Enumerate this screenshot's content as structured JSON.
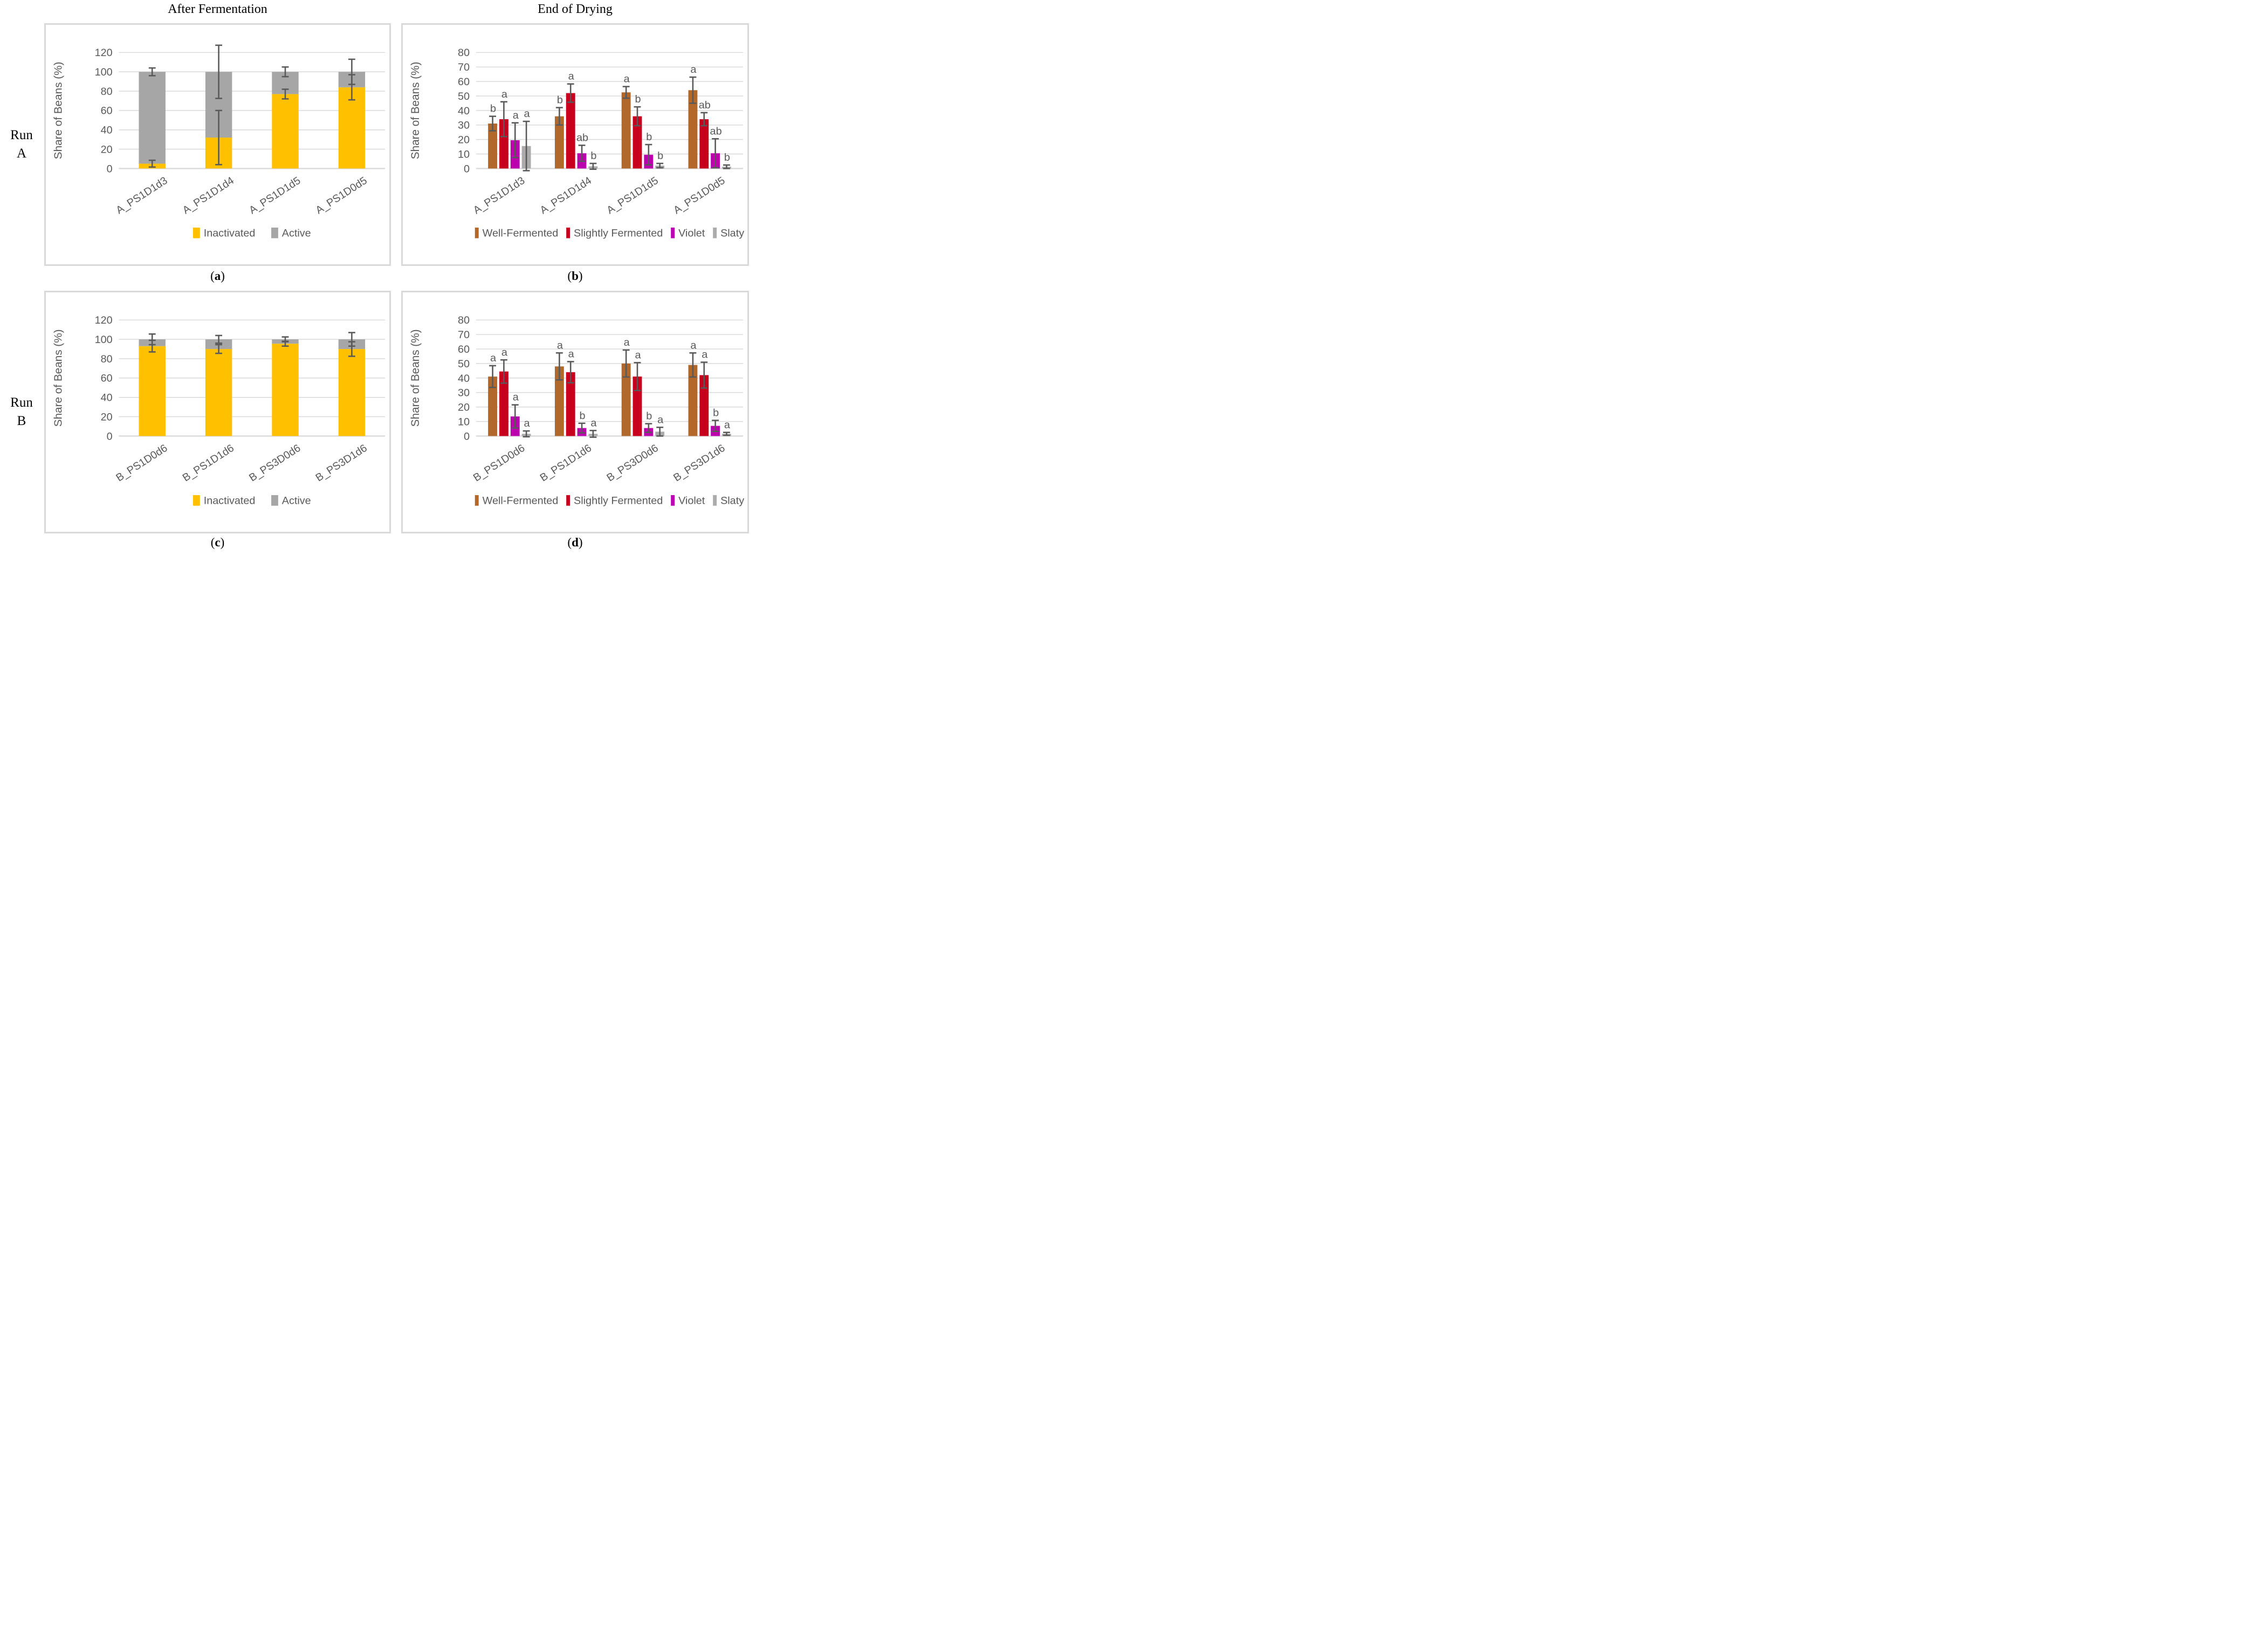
{
  "figure": {
    "column_titles": [
      "After Fermentation",
      "End of Drying"
    ],
    "row_labels": [
      {
        "word": "Run",
        "letter": "A"
      },
      {
        "word": "Run",
        "letter": "B"
      }
    ],
    "captions": [
      {
        "open": "(",
        "letter": "a",
        "close": ")"
      },
      {
        "open": "(",
        "letter": "b",
        "close": ")"
      },
      {
        "open": "(",
        "letter": "c",
        "close": ")"
      },
      {
        "open": "(",
        "letter": "d",
        "close": ")"
      }
    ]
  },
  "colors": {
    "inactivated": "#FFC000",
    "active": "#A6A6A6",
    "well_fermented": "#B2682B",
    "slightly_fermented": "#C7001E",
    "violet": "#BC02AE",
    "slaty": "#ABABAB",
    "text_gray": "#595959",
    "gridline": "#D9D9D9"
  },
  "chart_data": [
    {
      "panel": "a",
      "row": "Run A",
      "column_title": "After Fermentation",
      "type": "bar",
      "variant": "stacked",
      "ylabel": "Share of Beans (%)",
      "ylim": [
        0,
        120
      ],
      "ytick_step": 20,
      "grid": true,
      "legend_position": "bottom",
      "categories": [
        "A_PS1D1d3",
        "A_PS1D1d4",
        "A_PS1D1d5",
        "A_PS1D0d5"
      ],
      "series": [
        {
          "name": "Inactivated",
          "color_key": "inactivated",
          "values": [
            5,
            32,
            77,
            84
          ],
          "err": [
            3.5,
            28,
            5,
            13
          ]
        },
        {
          "name": "Active",
          "color_key": "active",
          "values": [
            95,
            68,
            23,
            16
          ],
          "err": [
            4,
            27.5,
            5,
            13
          ]
        }
      ]
    },
    {
      "panel": "b",
      "row": "Run A",
      "column_title": "End of Drying",
      "type": "bar",
      "variant": "grouped",
      "ylabel": "Share of Beans (%)",
      "ylim": [
        0,
        80
      ],
      "ytick_step": 10,
      "grid": true,
      "legend_position": "bottom",
      "categories": [
        "A_PS1D1d3",
        "A_PS1D1d4",
        "A_PS1D1d5",
        "A_PS1D0d5"
      ],
      "series": [
        {
          "name": "Well-Fermented",
          "color_key": "well_fermented",
          "values": [
            31,
            36,
            52.5,
            54
          ],
          "err": [
            5,
            6,
            4,
            9
          ],
          "letters": [
            "b",
            "b",
            "a",
            "a"
          ]
        },
        {
          "name": "Slightly Fermented",
          "color_key": "slightly_fermented",
          "values": [
            34,
            52,
            36,
            34
          ],
          "err": [
            12,
            6.3,
            6.5,
            4.5
          ],
          "letters": [
            "a",
            "a",
            "b",
            "ab"
          ]
        },
        {
          "name": "Violet",
          "color_key": "violet",
          "values": [
            19.5,
            10.5,
            9.5,
            10.5
          ],
          "err": [
            12,
            5.5,
            7,
            10
          ],
          "letters": [
            "a",
            "ab",
            "b",
            "ab"
          ]
        },
        {
          "name": "Slaty",
          "color_key": "slaty",
          "values": [
            15.5,
            1.5,
            2,
            1.2
          ],
          "err": [
            17,
            2,
            1.5,
            1.2
          ],
          "letters": [
            "a",
            "b",
            "b",
            "b"
          ]
        }
      ]
    },
    {
      "panel": "c",
      "row": "Run B",
      "column_title": "After Fermentation",
      "type": "bar",
      "variant": "stacked",
      "ylabel": "Share of Beans (%)",
      "ylim": [
        0,
        120
      ],
      "ytick_step": 20,
      "grid": true,
      "legend_position": "bottom",
      "categories": [
        "B_PS1D0d6",
        "B_PS1D1d6",
        "B_PS3D0d6",
        "B_PS3D1d6"
      ],
      "series": [
        {
          "name": "Inactivated",
          "color_key": "inactivated",
          "values": [
            93,
            90,
            95.5,
            90
          ],
          "err": [
            6,
            4.5,
            2.5,
            7.5
          ]
        },
        {
          "name": "Active",
          "color_key": "active",
          "values": [
            7,
            10,
            4.5,
            10
          ],
          "err": [
            5.5,
            4,
            2.5,
            7
          ]
        }
      ]
    },
    {
      "panel": "d",
      "row": "Run B",
      "column_title": "End of Drying",
      "type": "bar",
      "variant": "grouped",
      "ylabel": "Share of Beans (%)",
      "ylim": [
        0,
        80
      ],
      "ytick_step": 10,
      "grid": true,
      "legend_position": "bottom",
      "categories": [
        "B_PS1D0d6",
        "B_PS1D1d6",
        "B_PS3D0d6",
        "B_PS3D1d6"
      ],
      "series": [
        {
          "name": "Well-Fermented",
          "color_key": "well_fermented",
          "values": [
            41,
            48,
            50,
            49
          ],
          "err": [
            7.5,
            9.3,
            9.3,
            8.3
          ],
          "letters": [
            "a",
            "a",
            "a",
            "a"
          ]
        },
        {
          "name": "Slightly Fermented",
          "color_key": "slightly_fermented",
          "values": [
            44.5,
            44,
            41,
            42
          ],
          "err": [
            8,
            7.3,
            9.6,
            8.9
          ],
          "letters": [
            "a",
            "a",
            "a",
            "a"
          ]
        },
        {
          "name": "Violet",
          "color_key": "violet",
          "values": [
            13.5,
            5.5,
            5.5,
            7
          ],
          "err": [
            8,
            3.3,
            3,
            3.8
          ],
          "letters": [
            "a",
            "b",
            "b",
            "b"
          ]
        },
        {
          "name": "Slaty",
          "color_key": "slaty",
          "values": [
            1.5,
            1.5,
            3,
            1.5
          ],
          "err": [
            2,
            2.3,
            3,
            1
          ],
          "letters": [
            "a",
            "a",
            "a",
            "a"
          ]
        }
      ]
    }
  ]
}
